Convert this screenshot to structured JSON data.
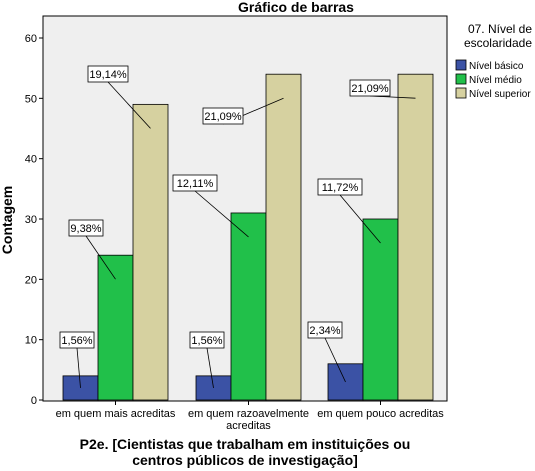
{
  "chart_data": {
    "type": "bar",
    "title": "Gráfico de barras",
    "ylabel": "Contagem",
    "xlabel_lines": [
      "P2e. [Cientistas que trabalham em instituições ou",
      "centros públicos de investigação]"
    ],
    "categories": [
      [
        "em quem mais acreditas"
      ],
      [
        "em quem razoavelmente",
        "acreditas"
      ],
      [
        "em quem pouco acreditas"
      ]
    ],
    "ylim": [
      0,
      60
    ],
    "yticks": [
      0,
      10,
      20,
      30,
      40,
      50,
      60
    ],
    "legend": {
      "title_lines": [
        "07. Nível de",
        "escolaridade"
      ],
      "position": "right"
    },
    "series": [
      {
        "name": "Nível básico",
        "color": "#3b52a5",
        "values": [
          4,
          4,
          6
        ],
        "labels": [
          "1,56%",
          "1,56%",
          "2,34%"
        ]
      },
      {
        "name": "Nível médio",
        "color": "#21c04a",
        "values": [
          24,
          31,
          30
        ],
        "labels": [
          "9,38%",
          "12,11%",
          "11,72%"
        ]
      },
      {
        "name": "Nível superior",
        "color": "#d6d1a0",
        "values": [
          49,
          54,
          54
        ],
        "labels": [
          "19,14%",
          "21,09%",
          "21,09%"
        ]
      }
    ],
    "plot_background": "#efefef",
    "grid": false
  }
}
